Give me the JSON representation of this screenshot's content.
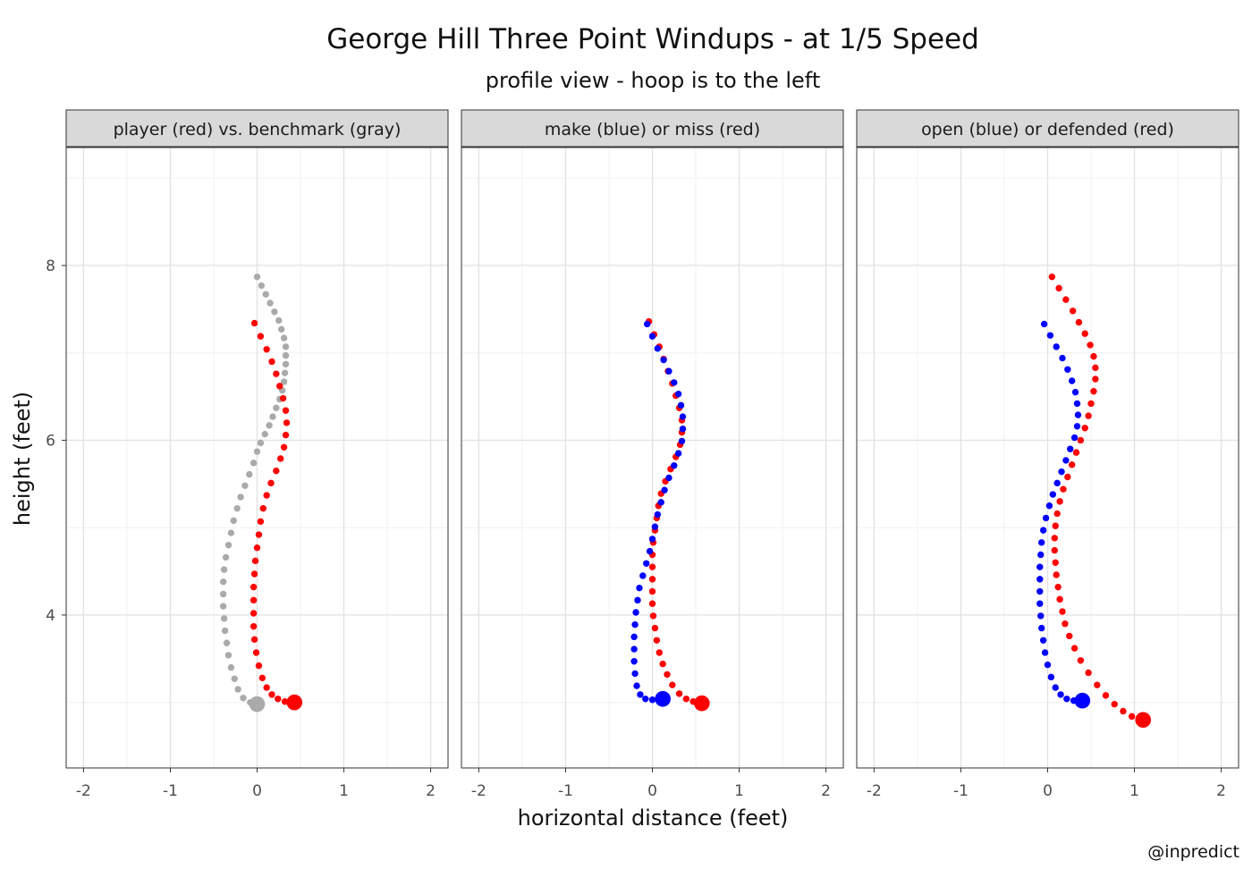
{
  "title": "George Hill Three Point Windups - at 1/5 Speed",
  "subtitle": "profile view - hoop is to the left",
  "caption": "@inpredict",
  "colors": {
    "red": "#ff0000",
    "blue": "#0000ff",
    "gray": "#aaaaaa",
    "strip": "#d9d9d9"
  },
  "chart_data": {
    "type": "scatter",
    "xlabel": "horizontal distance (feet)",
    "ylabel": "height (feet)",
    "xlim": [
      -2.2,
      2.2
    ],
    "ylim": [
      2.25,
      9.35
    ],
    "x_ticks": [
      -2,
      -1,
      0,
      1,
      2
    ],
    "x_tick_labels": [
      "-2",
      "-1",
      "0",
      "1",
      "2"
    ],
    "y_ticks": [
      4,
      6,
      8
    ],
    "y_tick_labels": [
      "4",
      "6",
      "8"
    ],
    "grid": true,
    "panels": [
      {
        "strip": "player (red) vs. benchmark (gray)",
        "series": [
          {
            "color": "gray",
            "start": [
              0.0,
              2.98
            ],
            "points": [
              [
                0.0,
                7.87
              ],
              [
                0.05,
                7.77
              ],
              [
                0.1,
                7.67
              ],
              [
                0.15,
                7.57
              ],
              [
                0.2,
                7.47
              ],
              [
                0.25,
                7.37
              ],
              [
                0.28,
                7.27
              ],
              [
                0.31,
                7.17
              ],
              [
                0.33,
                7.07
              ],
              [
                0.33,
                6.97
              ],
              [
                0.33,
                6.87
              ],
              [
                0.32,
                6.77
              ],
              [
                0.31,
                6.67
              ],
              [
                0.29,
                6.57
              ],
              [
                0.26,
                6.47
              ],
              [
                0.22,
                6.37
              ],
              [
                0.18,
                6.27
              ],
              [
                0.14,
                6.17
              ],
              [
                0.09,
                6.07
              ],
              [
                0.04,
                5.97
              ],
              [
                0.0,
                5.87
              ],
              [
                -0.04,
                5.74
              ],
              [
                -0.09,
                5.61
              ],
              [
                -0.14,
                5.48
              ],
              [
                -0.19,
                5.35
              ],
              [
                -0.23,
                5.22
              ],
              [
                -0.27,
                5.08
              ],
              [
                -0.3,
                4.94
              ],
              [
                -0.33,
                4.8
              ],
              [
                -0.36,
                4.66
              ],
              [
                -0.38,
                4.52
              ],
              [
                -0.39,
                4.38
              ],
              [
                -0.39,
                4.24
              ],
              [
                -0.39,
                4.1
              ],
              [
                -0.38,
                3.96
              ],
              [
                -0.37,
                3.82
              ],
              [
                -0.35,
                3.68
              ],
              [
                -0.33,
                3.54
              ],
              [
                -0.3,
                3.4
              ],
              [
                -0.26,
                3.27
              ],
              [
                -0.22,
                3.15
              ],
              [
                -0.16,
                3.05
              ],
              [
                -0.08,
                3.0
              ],
              [
                0.0,
                2.98
              ]
            ]
          },
          {
            "color": "red",
            "start": [
              0.43,
              3.0
            ],
            "points": [
              [
                -0.03,
                7.34
              ],
              [
                0.04,
                7.19
              ],
              [
                0.11,
                7.04
              ],
              [
                0.17,
                6.9
              ],
              [
                0.22,
                6.76
              ],
              [
                0.26,
                6.62
              ],
              [
                0.3,
                6.48
              ],
              [
                0.33,
                6.34
              ],
              [
                0.34,
                6.2
              ],
              [
                0.33,
                6.06
              ],
              [
                0.31,
                5.92
              ],
              [
                0.27,
                5.79
              ],
              [
                0.22,
                5.65
              ],
              [
                0.16,
                5.51
              ],
              [
                0.11,
                5.37
              ],
              [
                0.07,
                5.22
              ],
              [
                0.04,
                5.07
              ],
              [
                0.02,
                4.92
              ],
              [
                0.0,
                4.77
              ],
              [
                -0.02,
                4.62
              ],
              [
                -0.03,
                4.47
              ],
              [
                -0.04,
                4.32
              ],
              [
                -0.04,
                4.17
              ],
              [
                -0.04,
                4.02
              ],
              [
                -0.04,
                3.87
              ],
              [
                -0.03,
                3.72
              ],
              [
                -0.01,
                3.57
              ],
              [
                0.02,
                3.42
              ],
              [
                0.06,
                3.28
              ],
              [
                0.11,
                3.17
              ],
              [
                0.17,
                3.09
              ],
              [
                0.24,
                3.04
              ],
              [
                0.32,
                3.01
              ],
              [
                0.43,
                3.0
              ]
            ]
          }
        ]
      },
      {
        "strip": "make (blue) or miss (red)",
        "series": [
          {
            "color": "red",
            "start": [
              0.57,
              2.99
            ],
            "points": [
              [
                -0.04,
                7.36
              ],
              [
                0.02,
                7.21
              ],
              [
                0.08,
                7.07
              ],
              [
                0.13,
                6.93
              ],
              [
                0.18,
                6.79
              ],
              [
                0.23,
                6.65
              ],
              [
                0.27,
                6.51
              ],
              [
                0.31,
                6.37
              ],
              [
                0.34,
                6.23
              ],
              [
                0.34,
                6.09
              ],
              [
                0.32,
                5.95
              ],
              [
                0.27,
                5.81
              ],
              [
                0.21,
                5.67
              ],
              [
                0.15,
                5.53
              ],
              [
                0.1,
                5.39
              ],
              [
                0.07,
                5.25
              ],
              [
                0.05,
                5.11
              ],
              [
                0.03,
                4.97
              ],
              [
                0.01,
                4.83
              ],
              [
                0.0,
                4.69
              ],
              [
                0.0,
                4.55
              ],
              [
                0.0,
                4.41
              ],
              [
                0.0,
                4.27
              ],
              [
                0.0,
                4.13
              ],
              [
                0.01,
                3.99
              ],
              [
                0.03,
                3.85
              ],
              [
                0.05,
                3.71
              ],
              [
                0.08,
                3.57
              ],
              [
                0.12,
                3.44
              ],
              [
                0.17,
                3.32
              ],
              [
                0.23,
                3.2
              ],
              [
                0.31,
                3.1
              ],
              [
                0.39,
                3.04
              ],
              [
                0.47,
                3.01
              ],
              [
                0.57,
                2.99
              ]
            ]
          },
          {
            "color": "blue",
            "start": [
              0.12,
              3.04
            ],
            "points": [
              [
                -0.06,
                7.33
              ],
              [
                0.0,
                7.19
              ],
              [
                0.06,
                7.05
              ],
              [
                0.13,
                6.92
              ],
              [
                0.19,
                6.79
              ],
              [
                0.25,
                6.66
              ],
              [
                0.3,
                6.53
              ],
              [
                0.33,
                6.4
              ],
              [
                0.35,
                6.27
              ],
              [
                0.35,
                6.13
              ],
              [
                0.34,
                5.99
              ],
              [
                0.3,
                5.85
              ],
              [
                0.25,
                5.71
              ],
              [
                0.19,
                5.57
              ],
              [
                0.14,
                5.43
              ],
              [
                0.1,
                5.29
              ],
              [
                0.06,
                5.15
              ],
              [
                0.03,
                5.01
              ],
              [
                0.0,
                4.87
              ],
              [
                -0.03,
                4.73
              ],
              [
                -0.07,
                4.59
              ],
              [
                -0.11,
                4.45
              ],
              [
                -0.15,
                4.31
              ],
              [
                -0.17,
                4.17
              ],
              [
                -0.19,
                4.03
              ],
              [
                -0.2,
                3.89
              ],
              [
                -0.21,
                3.75
              ],
              [
                -0.21,
                3.61
              ],
              [
                -0.21,
                3.47
              ],
              [
                -0.2,
                3.33
              ],
              [
                -0.18,
                3.19
              ],
              [
                -0.14,
                3.09
              ],
              [
                -0.08,
                3.04
              ],
              [
                0.0,
                3.03
              ],
              [
                0.12,
                3.04
              ]
            ]
          }
        ]
      },
      {
        "strip": "open (blue) or defended (red)",
        "series": [
          {
            "color": "red",
            "start": [
              1.1,
              2.8
            ],
            "points": [
              [
                0.05,
                7.87
              ],
              [
                0.13,
                7.74
              ],
              [
                0.21,
                7.61
              ],
              [
                0.29,
                7.48
              ],
              [
                0.36,
                7.35
              ],
              [
                0.43,
                7.22
              ],
              [
                0.49,
                7.09
              ],
              [
                0.53,
                6.96
              ],
              [
                0.55,
                6.83
              ],
              [
                0.55,
                6.7
              ],
              [
                0.53,
                6.56
              ],
              [
                0.5,
                6.42
              ],
              [
                0.47,
                6.28
              ],
              [
                0.43,
                6.14
              ],
              [
                0.38,
                6.0
              ],
              [
                0.33,
                5.86
              ],
              [
                0.28,
                5.72
              ],
              [
                0.23,
                5.58
              ],
              [
                0.18,
                5.44
              ],
              [
                0.14,
                5.3
              ],
              [
                0.11,
                5.16
              ],
              [
                0.09,
                5.02
              ],
              [
                0.08,
                4.88
              ],
              [
                0.08,
                4.74
              ],
              [
                0.09,
                4.6
              ],
              [
                0.1,
                4.46
              ],
              [
                0.12,
                4.32
              ],
              [
                0.14,
                4.18
              ],
              [
                0.17,
                4.04
              ],
              [
                0.2,
                3.9
              ],
              [
                0.25,
                3.76
              ],
              [
                0.31,
                3.62
              ],
              [
                0.38,
                3.48
              ],
              [
                0.47,
                3.34
              ],
              [
                0.57,
                3.2
              ],
              [
                0.67,
                3.08
              ],
              [
                0.77,
                2.98
              ],
              [
                0.87,
                2.9
              ],
              [
                0.97,
                2.84
              ],
              [
                1.1,
                2.8
              ]
            ]
          },
          {
            "color": "blue",
            "start": [
              0.4,
              3.02
            ],
            "points": [
              [
                -0.04,
                7.33
              ],
              [
                0.03,
                7.2
              ],
              [
                0.1,
                7.07
              ],
              [
                0.17,
                6.94
              ],
              [
                0.23,
                6.81
              ],
              [
                0.28,
                6.68
              ],
              [
                0.32,
                6.55
              ],
              [
                0.34,
                6.42
              ],
              [
                0.35,
                6.29
              ],
              [
                0.34,
                6.16
              ],
              [
                0.31,
                6.03
              ],
              [
                0.26,
                5.9
              ],
              [
                0.21,
                5.77
              ],
              [
                0.16,
                5.64
              ],
              [
                0.11,
                5.51
              ],
              [
                0.06,
                5.38
              ],
              [
                0.02,
                5.25
              ],
              [
                -0.02,
                5.11
              ],
              [
                -0.05,
                4.97
              ],
              [
                -0.07,
                4.83
              ],
              [
                -0.08,
                4.69
              ],
              [
                -0.09,
                4.55
              ],
              [
                -0.09,
                4.41
              ],
              [
                -0.09,
                4.27
              ],
              [
                -0.09,
                4.13
              ],
              [
                -0.08,
                3.99
              ],
              [
                -0.07,
                3.85
              ],
              [
                -0.05,
                3.71
              ],
              [
                -0.03,
                3.57
              ],
              [
                0.0,
                3.43
              ],
              [
                0.04,
                3.29
              ],
              [
                0.09,
                3.17
              ],
              [
                0.15,
                3.09
              ],
              [
                0.22,
                3.04
              ],
              [
                0.3,
                3.02
              ],
              [
                0.4,
                3.02
              ]
            ]
          }
        ]
      }
    ]
  }
}
